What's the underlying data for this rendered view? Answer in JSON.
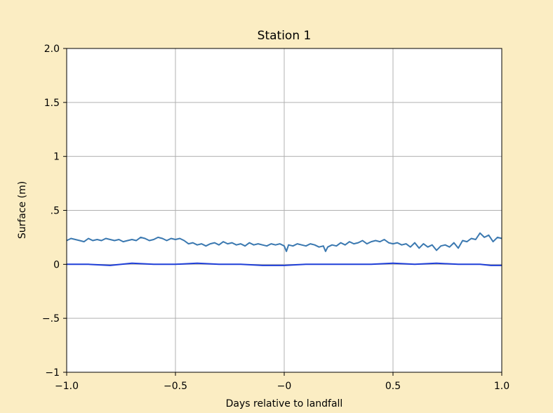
{
  "chart_data": {
    "type": "line",
    "title": "Station 1",
    "xlabel": "Days relative to landfall",
    "ylabel": "Surface (m)",
    "xlim": [
      -1.0,
      1.0
    ],
    "ylim": [
      -1.0,
      2.0
    ],
    "x_ticks": [
      {
        "value": -1.0,
        "label": "−1.0"
      },
      {
        "value": -0.5,
        "label": "−0.5"
      },
      {
        "value": 0.0,
        "label": "−0"
      },
      {
        "value": 0.5,
        "label": "0.5"
      },
      {
        "value": 1.0,
        "label": "1.0"
      }
    ],
    "y_ticks": [
      {
        "value": -1.0,
        "label": "−1"
      },
      {
        "value": -0.5,
        "label": "−.5"
      },
      {
        "value": 0.0,
        "label": "0"
      },
      {
        "value": 0.5,
        "label": ".5"
      },
      {
        "value": 1.0,
        "label": "1"
      },
      {
        "value": 1.5,
        "label": "1.5"
      },
      {
        "value": 2.0,
        "label": "2.0"
      }
    ],
    "grid": true,
    "background_color": "#fbedc3",
    "series": [
      {
        "color": "#3a78b0",
        "x": [
          -1.0,
          -0.98,
          -0.96,
          -0.94,
          -0.92,
          -0.9,
          -0.88,
          -0.86,
          -0.84,
          -0.82,
          -0.8,
          -0.78,
          -0.76,
          -0.74,
          -0.72,
          -0.7,
          -0.68,
          -0.66,
          -0.64,
          -0.62,
          -0.6,
          -0.58,
          -0.56,
          -0.54,
          -0.52,
          -0.5,
          -0.48,
          -0.46,
          -0.44,
          -0.42,
          -0.4,
          -0.38,
          -0.36,
          -0.34,
          -0.32,
          -0.3,
          -0.28,
          -0.26,
          -0.24,
          -0.22,
          -0.2,
          -0.18,
          -0.16,
          -0.14,
          -0.12,
          -0.1,
          -0.08,
          -0.06,
          -0.04,
          -0.02,
          0.0,
          0.01,
          0.02,
          0.04,
          0.06,
          0.08,
          0.1,
          0.12,
          0.14,
          0.16,
          0.18,
          0.19,
          0.2,
          0.22,
          0.24,
          0.26,
          0.28,
          0.3,
          0.32,
          0.34,
          0.36,
          0.38,
          0.4,
          0.42,
          0.44,
          0.46,
          0.48,
          0.5,
          0.52,
          0.54,
          0.56,
          0.58,
          0.6,
          0.62,
          0.64,
          0.66,
          0.68,
          0.7,
          0.72,
          0.74,
          0.76,
          0.78,
          0.8,
          0.82,
          0.84,
          0.86,
          0.88,
          0.9,
          0.92,
          0.94,
          0.96,
          0.98,
          1.0
        ],
        "y": [
          0.22,
          0.24,
          0.23,
          0.22,
          0.21,
          0.24,
          0.22,
          0.23,
          0.22,
          0.24,
          0.23,
          0.22,
          0.23,
          0.21,
          0.22,
          0.23,
          0.22,
          0.25,
          0.24,
          0.22,
          0.23,
          0.25,
          0.24,
          0.22,
          0.24,
          0.23,
          0.24,
          0.22,
          0.19,
          0.2,
          0.18,
          0.19,
          0.17,
          0.19,
          0.2,
          0.18,
          0.21,
          0.19,
          0.2,
          0.18,
          0.19,
          0.17,
          0.2,
          0.18,
          0.19,
          0.18,
          0.17,
          0.19,
          0.18,
          0.19,
          0.17,
          0.12,
          0.18,
          0.17,
          0.19,
          0.18,
          0.17,
          0.19,
          0.18,
          0.16,
          0.17,
          0.12,
          0.16,
          0.18,
          0.17,
          0.2,
          0.18,
          0.21,
          0.19,
          0.2,
          0.22,
          0.19,
          0.21,
          0.22,
          0.21,
          0.23,
          0.2,
          0.19,
          0.2,
          0.18,
          0.19,
          0.16,
          0.2,
          0.15,
          0.19,
          0.16,
          0.18,
          0.13,
          0.17,
          0.18,
          0.16,
          0.2,
          0.15,
          0.22,
          0.21,
          0.24,
          0.23,
          0.29,
          0.25,
          0.27,
          0.21,
          0.25,
          0.24
        ]
      },
      {
        "color": "#1f3fd8",
        "x": [
          -1.0,
          -0.9,
          -0.8,
          -0.7,
          -0.6,
          -0.5,
          -0.4,
          -0.3,
          -0.2,
          -0.1,
          0.0,
          0.1,
          0.2,
          0.3,
          0.4,
          0.5,
          0.6,
          0.7,
          0.8,
          0.9,
          0.95,
          1.0
        ],
        "y": [
          0.0,
          0.0,
          -0.01,
          0.01,
          0.0,
          0.0,
          0.01,
          0.0,
          0.0,
          -0.01,
          -0.01,
          0.0,
          0.0,
          0.0,
          0.0,
          0.01,
          0.0,
          0.01,
          0.0,
          0.0,
          -0.01,
          -0.01
        ]
      }
    ]
  }
}
